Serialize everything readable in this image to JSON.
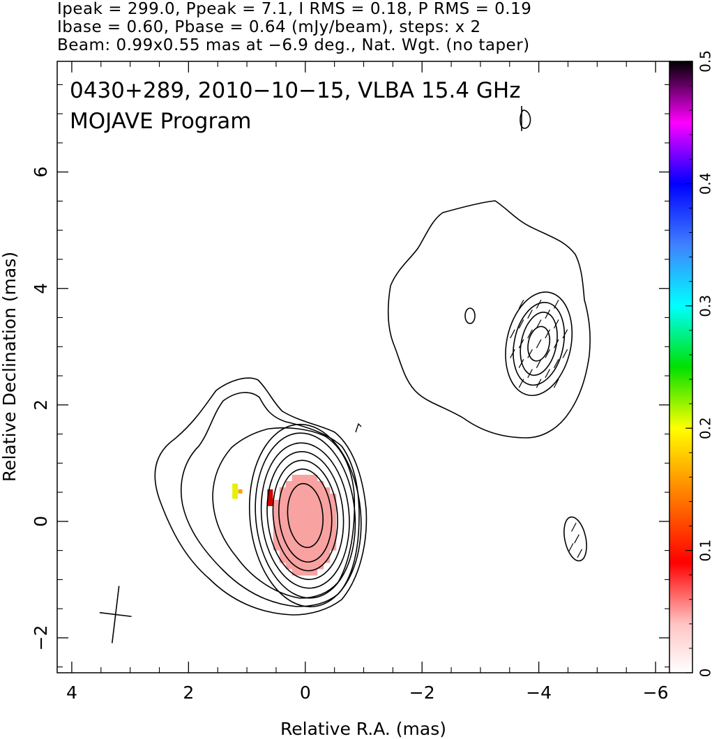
{
  "header": {
    "line1": "Ipeak = 299.0, Ppeak = 7.1, I RMS = 0.18, P RMS = 0.19",
    "line2": "Ibase = 0.60, Pbase = 0.64 (mJy/beam), steps: x 2",
    "line3": "Beam: 0.99x0.55 mas at −6.9 deg., Nat. Wgt. (no taper)"
  },
  "chart_data": {
    "type": "heatmap",
    "title": "0430+289, 2010−10−15, VLBA 15.4 GHz",
    "subtitle": "MOJAVE Program",
    "xlabel": "Relative R.A. (mas)",
    "ylabel": "Relative Declination (mas)",
    "xlim": [
      4.25,
      -6.25
    ],
    "ylim": [
      -2.6,
      7.9
    ],
    "x_ticks": [
      4,
      2,
      0,
      -2,
      -4,
      -6
    ],
    "x_tick_labels": [
      "4",
      "2",
      "0",
      "−2",
      "−4",
      "−6"
    ],
    "y_ticks": [
      -2,
      0,
      2,
      4,
      6
    ],
    "y_tick_labels": [
      "−2",
      "0",
      "2",
      "4",
      "6"
    ],
    "colorbar": {
      "min": 0,
      "max": 0.5,
      "ticks": [
        0,
        0.1,
        0.2,
        0.3,
        0.4,
        0.5
      ],
      "tick_labels": [
        "0",
        "0.1",
        "0.2",
        "0.3",
        "0.4",
        "0.5"
      ]
    },
    "contours": {
      "core": {
        "center": [
          0.0,
          0.1
        ],
        "semi_axes": [
          [
            0.3,
            0.55
          ],
          [
            0.45,
            0.8
          ],
          [
            0.55,
            0.95
          ],
          [
            0.65,
            1.1
          ],
          [
            0.75,
            1.25
          ],
          [
            0.85,
            1.42
          ],
          [
            0.95,
            1.57
          ]
        ]
      },
      "jet_knot": {
        "center": [
          -4.0,
          3.05
        ],
        "semi_axes": [
          [
            0.18,
            0.3
          ],
          [
            0.3,
            0.55
          ],
          [
            0.42,
            0.72
          ],
          [
            0.55,
            0.9
          ]
        ]
      }
    },
    "polarization_region": {
      "center": [
        0.0,
        -0.05
      ],
      "semi_axes": [
        0.55,
        0.85
      ],
      "value_scale": 0.02
    },
    "beam": {
      "major_mas": 0.99,
      "minor_mas": 0.55,
      "pa_deg": -6.9,
      "position": [
        3.25,
        -1.6
      ]
    }
  }
}
